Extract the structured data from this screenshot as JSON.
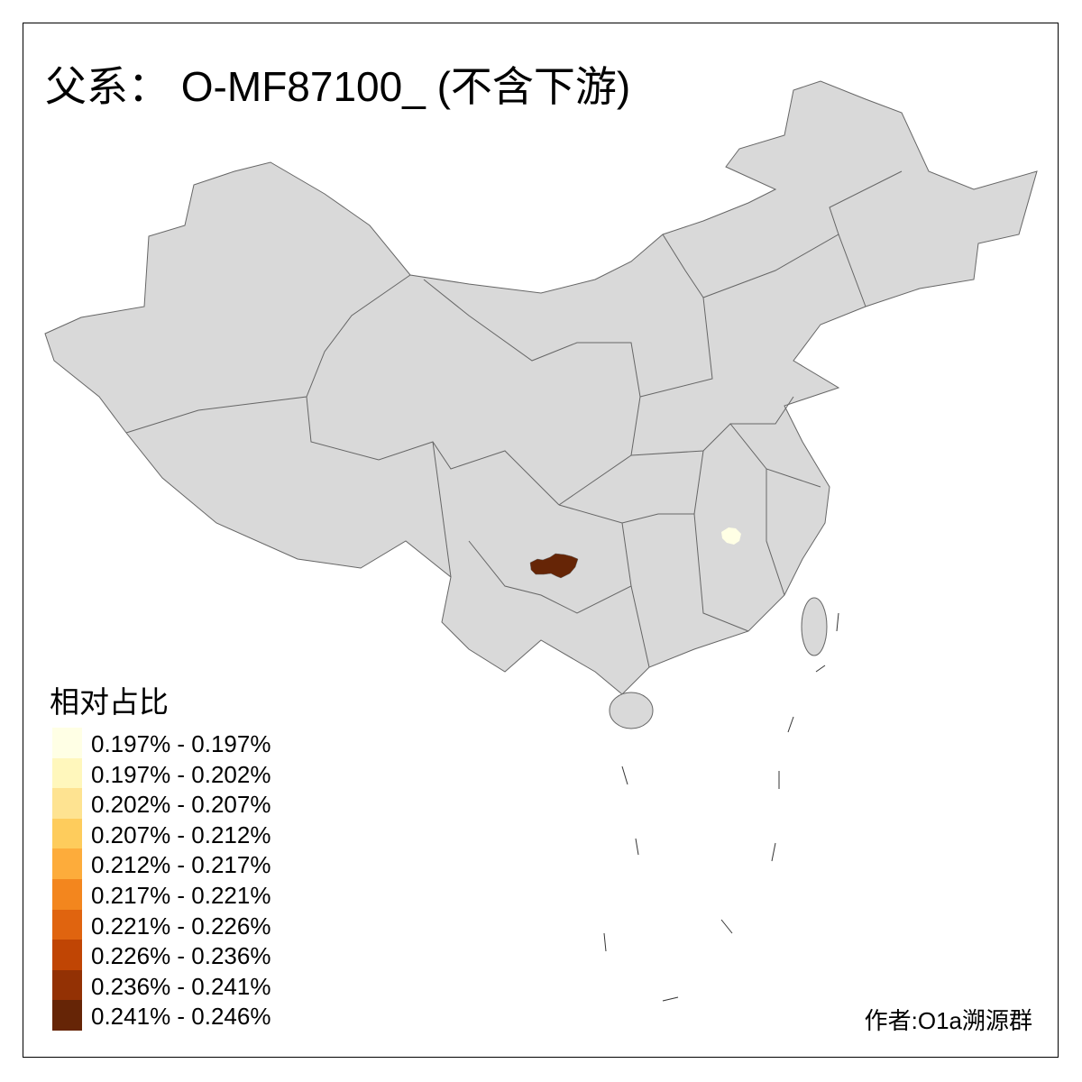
{
  "title": "父系： O-MF87100_ (不含下游)",
  "legend": {
    "title": "相对占比",
    "items": [
      {
        "label": "0.197% - 0.197%",
        "color": "#FFFFE5"
      },
      {
        "label": "0.197% - 0.202%",
        "color": "#FFF7BC"
      },
      {
        "label": "0.202% - 0.207%",
        "color": "#FEE391"
      },
      {
        "label": "0.207% - 0.212%",
        "color": "#FECC5C"
      },
      {
        "label": "0.212% - 0.217%",
        "color": "#FDAC3B"
      },
      {
        "label": "0.217% - 0.221%",
        "color": "#F3861E"
      },
      {
        "label": "0.221% - 0.226%",
        "color": "#E0640F"
      },
      {
        "label": "0.226% - 0.236%",
        "color": "#C04504"
      },
      {
        "label": "0.236% - 0.241%",
        "color": "#933104"
      },
      {
        "label": "0.241% - 0.246%",
        "color": "#662506"
      }
    ]
  },
  "map": {
    "base_color": "#D9D9D9",
    "border_color": "#666666",
    "highlighted": [
      {
        "class": "0.241% - 0.246%",
        "color": "#662506"
      },
      {
        "class": "0.197% - 0.197%",
        "color": "#FFFFE5"
      }
    ]
  },
  "author": "作者:O1a溯源群"
}
